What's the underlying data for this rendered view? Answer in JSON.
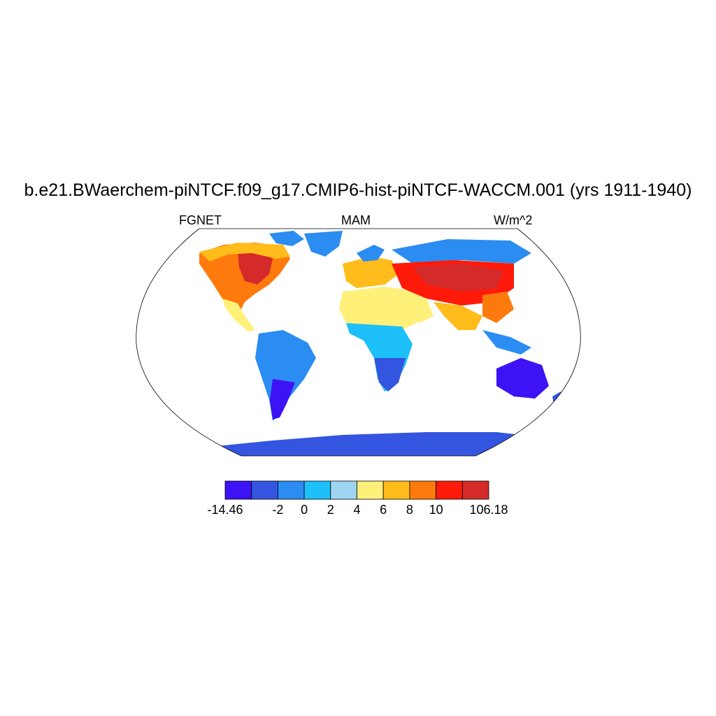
{
  "title": "b.e21.BWaerchem-piNTCF.f09_g17.CMIP6-hist-piNTCF-WACCM.001 (yrs 1911-1940)",
  "left_string": "FGNET",
  "center_string": "MAM",
  "right_string": "W/m^2",
  "colorbar": {
    "colors": [
      "#3d12f5",
      "#3355e0",
      "#2b8cf2",
      "#1dc0f8",
      "#9fd5f0",
      "#fff07a",
      "#ffbc1a",
      "#ff7a0d",
      "#ff1a0a",
      "#d42a2a"
    ],
    "labels": [
      "-14.46",
      "-2",
      "0",
      "2",
      "4",
      "6",
      "8",
      "10",
      "106.18"
    ]
  },
  "legend_ticks": [
    {
      "text": "-14.46"
    },
    {
      "text": "-2"
    },
    {
      "text": "0"
    },
    {
      "text": "2"
    },
    {
      "text": "4"
    },
    {
      "text": "6"
    },
    {
      "text": "8"
    },
    {
      "text": "10"
    },
    {
      "text": "106.18"
    }
  ]
}
